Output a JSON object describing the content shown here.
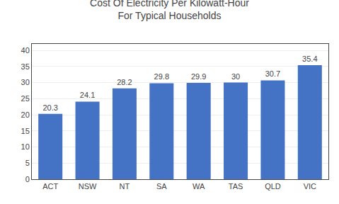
{
  "chart_data": {
    "type": "bar",
    "title": "Cost Of Electricity Per Kilowatt-Hour\nFor Typical Households",
    "categories": [
      "ACT",
      "NSW",
      "NT",
      "SA",
      "WA",
      "TAS",
      "QLD",
      "VIC"
    ],
    "values": [
      20.3,
      24.1,
      28.2,
      29.8,
      29.9,
      30,
      30.7,
      35.4
    ],
    "color": "#4472C4",
    "ylim": [
      0,
      42
    ],
    "yticks": [
      0,
      5,
      10,
      15,
      20,
      25,
      30,
      35,
      40
    ],
    "grid": true,
    "data_labels": true
  }
}
